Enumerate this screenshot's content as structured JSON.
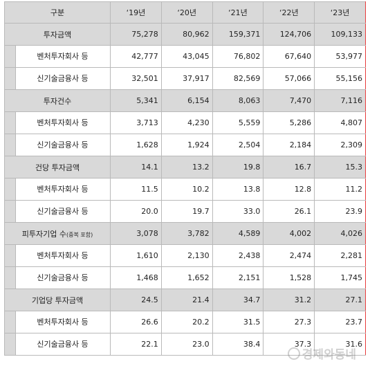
{
  "headers": [
    "구분",
    "‘19년",
    "‘20년",
    "‘21년",
    "‘22년",
    "‘23년"
  ],
  "groups": [
    {
      "label": "투자금액",
      "label_note": "",
      "values": [
        "75,278",
        "80,962",
        "159,371",
        "124,706",
        "109,133"
      ],
      "subs": [
        {
          "label": "벤처투자회사 등",
          "values": [
            "42,777",
            "43,045",
            "76,802",
            "67,640",
            "53,977"
          ]
        },
        {
          "label": "신기술금융사 등",
          "values": [
            "32,501",
            "37,917",
            "82,569",
            "57,066",
            "55,156"
          ]
        }
      ]
    },
    {
      "label": "투자건수",
      "label_note": "",
      "values": [
        "5,341",
        "6,154",
        "8,063",
        "7,470",
        "7,116"
      ],
      "subs": [
        {
          "label": "벤처투자회사 등",
          "values": [
            "3,713",
            "4,230",
            "5,559",
            "5,286",
            "4,807"
          ]
        },
        {
          "label": "신기술금융사 등",
          "values": [
            "1,628",
            "1,924",
            "2,504",
            "2,184",
            "2,309"
          ]
        }
      ]
    },
    {
      "label": "건당 투자금액",
      "label_note": "",
      "values": [
        "14.1",
        "13.2",
        "19.8",
        "16.7",
        "15.3"
      ],
      "subs": [
        {
          "label": "벤처투자회사 등",
          "values": [
            "11.5",
            "10.2",
            "13.8",
            "12.8",
            "11.2"
          ]
        },
        {
          "label": "신기술금융사 등",
          "values": [
            "20.0",
            "19.7",
            "33.0",
            "26.1",
            "23.9"
          ]
        }
      ]
    },
    {
      "label": "피투자기업 수",
      "label_note": "(중복 포함)",
      "values": [
        "3,078",
        "3,782",
        "4,589",
        "4,002",
        "4,026"
      ],
      "subs": [
        {
          "label": "벤처투자회사 등",
          "values": [
            "1,610",
            "2,130",
            "2,438",
            "2,474",
            "2,281"
          ]
        },
        {
          "label": "신기술금융사 등",
          "values": [
            "1,468",
            "1,652",
            "2,151",
            "1,528",
            "1,745"
          ]
        }
      ]
    },
    {
      "label": "기업당 투자금액",
      "label_note": "",
      "values": [
        "24.5",
        "21.4",
        "34.7",
        "31.2",
        "27.1"
      ],
      "subs": [
        {
          "label": "벤처투자회사 등",
          "values": [
            "26.6",
            "20.2",
            "31.5",
            "27.3",
            "23.7"
          ]
        },
        {
          "label": "신기술금융사 등",
          "values": [
            "22.1",
            "23.0",
            "38.4",
            "37.3",
            "31.6"
          ]
        }
      ]
    }
  ],
  "watermark": "경제와동네",
  "colors": {
    "header_bg": "#d9d9d9",
    "highlight_blue": "#3d3df0",
    "highlight_red": "#e83b3b"
  }
}
